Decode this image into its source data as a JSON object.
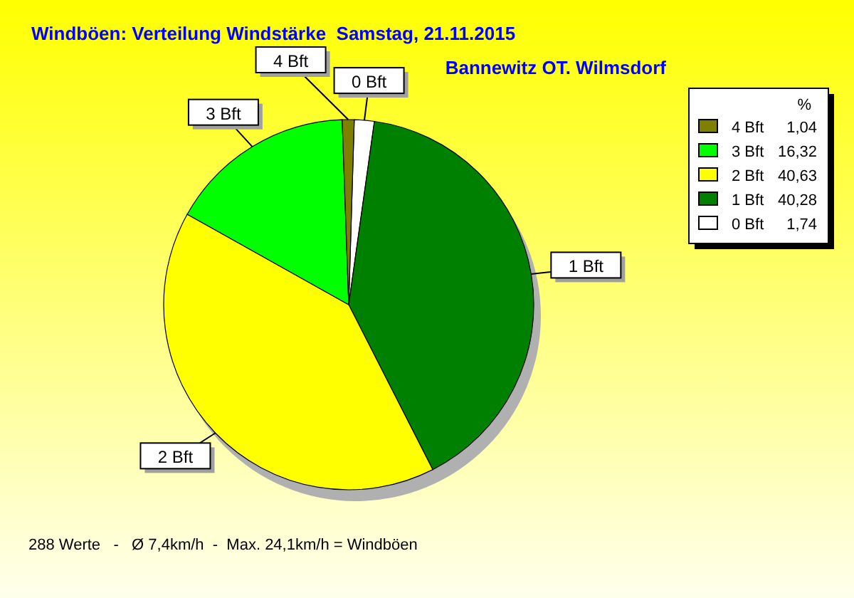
{
  "chart_data": {
    "type": "pie",
    "title": "Windböen: Verteilung Windstärke  Samstag, 21.11.2015",
    "subtitle": "Bannewitz OT. Wilmsdorf",
    "categories": [
      "0 Bft",
      "1 Bft",
      "2 Bft",
      "3 Bft",
      "4 Bft"
    ],
    "values": [
      1.74,
      40.28,
      40.63,
      16.32,
      1.04
    ],
    "value_labels": [
      "1,74",
      "40,28",
      "40,63",
      "16,32",
      "1,04"
    ],
    "colors": [
      "#ffffff",
      "#008000",
      "#ffff00",
      "#00ff00",
      "#808000"
    ],
    "legend": "top right",
    "legend_title": "%",
    "annotations": [
      "288 Werte   -   Ø 7,4km/h  -  Max. 24,1km/h = Windböen"
    ]
  }
}
